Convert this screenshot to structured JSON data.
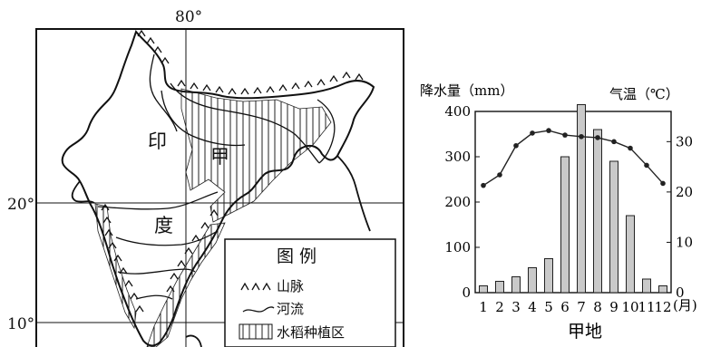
{
  "map": {
    "lon_label": "80°",
    "lat_labels": [
      "20°",
      "10°"
    ],
    "region_chars": [
      "印",
      "甲",
      "度"
    ],
    "legend": {
      "title": "图 例",
      "items": [
        {
          "icon": "mountain-range-symbol",
          "label": "山脉"
        },
        {
          "icon": "river-line-symbol",
          "label": "河流"
        },
        {
          "icon": "vertical-hatch-box",
          "label": "水稻种植区"
        }
      ]
    }
  },
  "chart_data": {
    "type": "bar+line",
    "title": "甲地",
    "ylabel_left": "降水量（mm）",
    "ylabel_right": "气温（℃）",
    "x_unit": "(月)",
    "categories": [
      "1",
      "2",
      "3",
      "4",
      "5",
      "6",
      "7",
      "8",
      "9",
      "10",
      "11",
      "12"
    ],
    "precip_ylim": [
      0,
      400
    ],
    "precip_ticks": [
      0,
      100,
      200,
      300,
      400
    ],
    "temp_ylim": [
      0,
      36
    ],
    "temp_ticks": [
      0,
      10,
      20,
      30
    ],
    "series": [
      {
        "values": [
          15,
          25,
          35,
          55,
          75,
          300,
          415,
          360,
          290,
          170,
          30,
          15
        ]
      },
      {
        "values": [
          21.3,
          23.4,
          29.2,
          31.7,
          32.2,
          31.3,
          31.0,
          30.8,
          30.0,
          28.7,
          25.3,
          21.7
        ]
      }
    ],
    "colors": {
      "bars": "#c9c9c9",
      "stroke": "#222222"
    }
  }
}
